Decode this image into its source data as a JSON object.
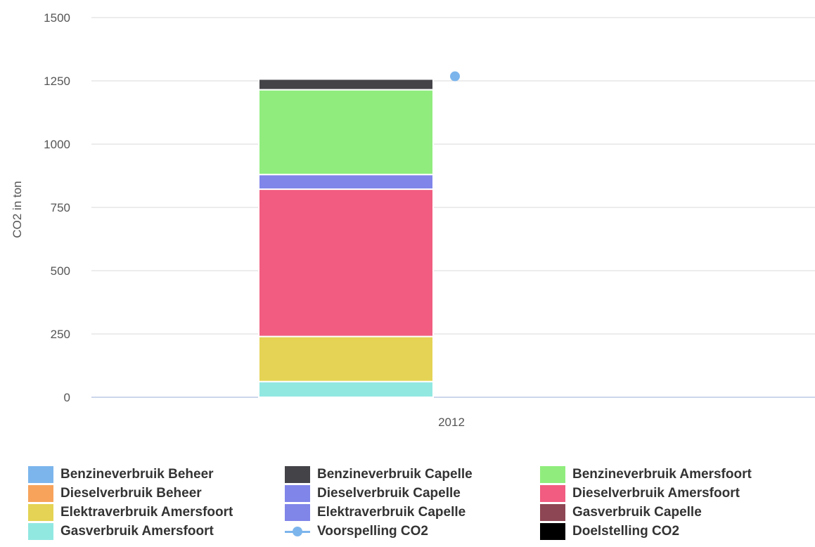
{
  "chart_data": {
    "type": "bar",
    "stacked": true,
    "categories": [
      "2012"
    ],
    "ylabel": "CO2 in ton",
    "xlabel": "",
    "ylim": [
      0,
      1500
    ],
    "yticks": [
      "0",
      "250",
      "500",
      "750",
      "1000",
      "1250",
      "1500"
    ],
    "grid": true,
    "legend_position": "bottom",
    "series": [
      {
        "name": "Benzineverbruik Beheer",
        "type": "bar",
        "color": "#7cb5ec",
        "values": [
          0
        ]
      },
      {
        "name": "Benzineverbruik Capelle",
        "type": "bar",
        "color": "#434348",
        "values": [
          42
        ]
      },
      {
        "name": "Benzineverbruik Amersfoort",
        "type": "bar",
        "color": "#90ed7d",
        "values": [
          335
        ]
      },
      {
        "name": "Dieselverbruik Beheer",
        "type": "bar",
        "color": "#f7a35c",
        "values": [
          0
        ]
      },
      {
        "name": "Dieselverbruik Capelle",
        "type": "bar",
        "color": "#8085e9",
        "values": [
          58
        ]
      },
      {
        "name": "Dieselverbruik Amersfoort",
        "type": "bar",
        "color": "#f15c80",
        "values": [
          582
        ]
      },
      {
        "name": "Elektraverbruik Amersfoort",
        "type": "bar",
        "color": "#e4d354",
        "values": [
          178
        ]
      },
      {
        "name": "Elektraverbruik Capelle",
        "type": "bar",
        "color": "#8085e8",
        "values": [
          0
        ]
      },
      {
        "name": "Gasverbruik Capelle",
        "type": "bar",
        "color": "#8d4653",
        "values": [
          0
        ]
      },
      {
        "name": "Gasverbruik Amersfoort",
        "type": "bar",
        "color": "#91e8e1",
        "values": [
          62
        ]
      },
      {
        "name": "Voorspelling CO2",
        "type": "line",
        "color": "#7cb5ec",
        "values": [
          1268
        ]
      },
      {
        "name": "Doelstelling CO2",
        "type": "line",
        "color": "#000000",
        "values": [
          null
        ]
      }
    ],
    "stack_order_bottom_to_top": [
      9,
      6,
      5,
      4,
      2,
      1
    ]
  },
  "legend": {
    "rows": [
      [
        {
          "label": "Benzineverbruik Beheer",
          "color": "#7cb5ec",
          "kind": "bar"
        },
        {
          "label": "Benzineverbruik Capelle",
          "color": "#434348",
          "kind": "bar"
        },
        {
          "label": "Benzineverbruik Amersfoort",
          "color": "#90ed7d",
          "kind": "bar"
        }
      ],
      [
        {
          "label": "Dieselverbruik Beheer",
          "color": "#f7a35c",
          "kind": "bar"
        },
        {
          "label": "Dieselverbruik Capelle",
          "color": "#8085e9",
          "kind": "bar"
        },
        {
          "label": "Dieselverbruik Amersfoort",
          "color": "#f15c80",
          "kind": "bar"
        }
      ],
      [
        {
          "label": "Elektraverbruik Amersfoort",
          "color": "#e4d354",
          "kind": "bar"
        },
        {
          "label": "Elektraverbruik Capelle",
          "color": "#8085e8",
          "kind": "bar"
        },
        {
          "label": "Gasverbruik Capelle",
          "color": "#8d4653",
          "kind": "bar"
        }
      ],
      [
        {
          "label": "Gasverbruik Amersfoort",
          "color": "#91e8e1",
          "kind": "bar"
        },
        {
          "label": "Voorspelling CO2",
          "color": "#7cb5ec",
          "kind": "line"
        },
        {
          "label": "Doelstelling CO2",
          "color": "#000000",
          "kind": "bar"
        }
      ]
    ]
  }
}
